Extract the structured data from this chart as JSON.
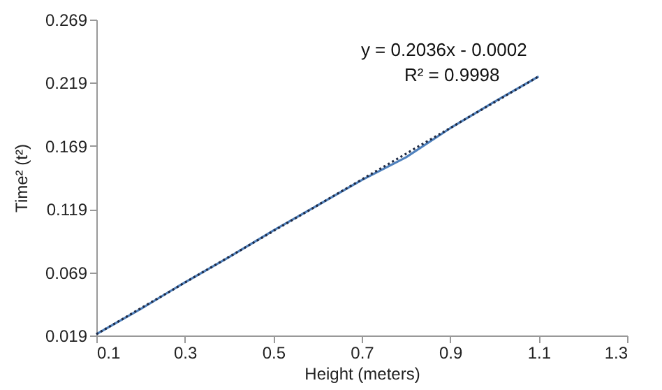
{
  "chart_data": {
    "type": "line",
    "xlabel": "Height (meters)",
    "ylabel": "Time² (t²)",
    "annotations": [
      "y = 0.2036x - 0.0002",
      "R² = 0.9998"
    ],
    "x": [
      0.1,
      0.2,
      0.3,
      0.4,
      0.5,
      0.6,
      0.7,
      0.8,
      0.9,
      1.0,
      1.1
    ],
    "series": [
      {
        "color": "#4f81bd",
        "values": [
          0.02,
          0.04,
          0.061,
          0.081,
          0.102,
          0.122,
          0.142,
          0.16,
          0.183,
          0.204,
          0.224
        ]
      },
      {
        "type": "line",
        "color": "#1f2a44",
        "line_style": "dotted",
        "x": [
          0.1,
          1.1
        ],
        "values": [
          0.02,
          0.224
        ]
      }
    ],
    "xlim": [
      0.1,
      1.3
    ],
    "xticks": [
      0.1,
      0.3,
      0.5,
      0.7,
      0.9,
      1.1,
      1.3
    ],
    "ylim": [
      0.019,
      0.269
    ],
    "yticks": [
      0.019,
      0.069,
      0.119,
      0.169,
      0.219,
      0.269
    ],
    "grid": false,
    "marker": "none"
  }
}
